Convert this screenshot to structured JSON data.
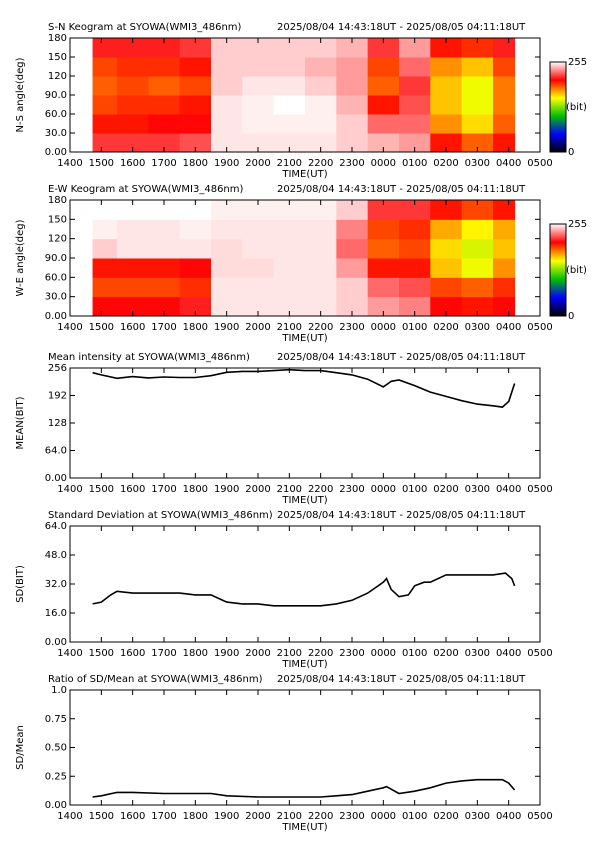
{
  "chart_data": [
    {
      "type": "heatmap",
      "title": "S-N Keogram at SYOWA(WMI3_486nm)",
      "subtitle": "2025/08/04 14:43:18UT - 2025/08/05 04:11:18UT",
      "xlabel": "TIME(UT)",
      "ylabel": "N-S angle(deg)",
      "x_edges": [
        14.72,
        15.5,
        16.5,
        17.5,
        18.5,
        19.5,
        20.5,
        21.5,
        22.5,
        23.5,
        24.5,
        25.5,
        26.5,
        27.5,
        28.19
      ],
      "y_edges": [
        0,
        30,
        60,
        90,
        120,
        150,
        180
      ],
      "z": [
        [
          215,
          215,
          215,
          220,
          250,
          250,
          250,
          250,
          245,
          240,
          235,
          200,
          185,
          200
        ],
        [
          200,
          200,
          205,
          205,
          250,
          252,
          252,
          252,
          245,
          225,
          225,
          175,
          160,
          185
        ],
        [
          190,
          195,
          195,
          200,
          250,
          252,
          255,
          252,
          240,
          200,
          220,
          165,
          150,
          180
        ],
        [
          185,
          190,
          185,
          190,
          245,
          250,
          250,
          245,
          235,
          185,
          215,
          165,
          150,
          180
        ],
        [
          190,
          195,
          195,
          200,
          245,
          245,
          245,
          240,
          235,
          190,
          225,
          175,
          165,
          190
        ],
        [
          210,
          210,
          210,
          215,
          245,
          245,
          245,
          245,
          240,
          215,
          235,
          200,
          195,
          210
        ]
      ],
      "zlim": [
        0,
        255
      ],
      "zticks": [
        0,
        255
      ],
      "colorbar_label": "(bit)",
      "colorscale": [
        "#000000",
        "#0000ff",
        "#00c000",
        "#ffff00",
        "#ff0000",
        "#ffffff"
      ],
      "xlim": [
        14,
        29
      ],
      "xticks": [
        {
          "value": 14,
          "label": "1400"
        },
        {
          "value": 15,
          "label": "1500"
        },
        {
          "value": 16,
          "label": "1600"
        },
        {
          "value": 17,
          "label": "1700"
        },
        {
          "value": 18,
          "label": "1800"
        },
        {
          "value": 19,
          "label": "1900"
        },
        {
          "value": 20,
          "label": "2000"
        },
        {
          "value": 21,
          "label": "2100"
        },
        {
          "value": 22,
          "label": "2200"
        },
        {
          "value": 23,
          "label": "2300"
        },
        {
          "value": 24,
          "label": "0000"
        },
        {
          "value": 25,
          "label": "0100"
        },
        {
          "value": 26,
          "label": "0200"
        },
        {
          "value": 27,
          "label": "0300"
        },
        {
          "value": 28,
          "label": "0400"
        },
        {
          "value": 29,
          "label": "0500"
        }
      ],
      "ylim": [
        0,
        180
      ],
      "yticks": [
        {
          "value": 0,
          "label": "0.00"
        },
        {
          "value": 30,
          "label": "30.0"
        },
        {
          "value": 60,
          "label": "60.0"
        },
        {
          "value": 90,
          "label": "90.0"
        },
        120,
        150,
        180
      ]
    },
    {
      "type": "heatmap",
      "title": "E-W Keogram at SYOWA(WMI3_486nm)",
      "subtitle": "2025/08/04 14:43:18UT - 2025/08/05 04:11:18UT",
      "xlabel": "TIME(UT)",
      "ylabel": "W-E angle(deg)",
      "x_edges": [
        14.72,
        15.5,
        16.5,
        17.5,
        18.5,
        19.5,
        20.5,
        21.5,
        22.5,
        23.5,
        24.5,
        25.5,
        26.5,
        27.5,
        28.19
      ],
      "y_edges": [
        0,
        30,
        60,
        90,
        120,
        150,
        180
      ],
      "z": [
        [
          205,
          205,
          205,
          210,
          250,
          250,
          250,
          250,
          245,
          235,
          230,
          205,
          200,
          205
        ],
        [
          190,
          190,
          190,
          195,
          250,
          250,
          250,
          250,
          245,
          225,
          220,
          190,
          185,
          195
        ],
        [
          200,
          200,
          200,
          205,
          248,
          248,
          250,
          250,
          235,
          200,
          200,
          165,
          150,
          175
        ],
        [
          245,
          250,
          250,
          250,
          248,
          250,
          250,
          250,
          225,
          185,
          190,
          160,
          145,
          165
        ],
        [
          252,
          250,
          250,
          252,
          250,
          250,
          250,
          250,
          230,
          190,
          195,
          170,
          155,
          170
        ],
        [
          255,
          255,
          255,
          255,
          252,
          252,
          252,
          252,
          245,
          215,
          215,
          200,
          190,
          200
        ]
      ],
      "zlim": [
        0,
        255
      ],
      "zticks": [
        0,
        255
      ],
      "colorbar_label": "(bit)",
      "colorscale": [
        "#000000",
        "#0000ff",
        "#00c000",
        "#ffff00",
        "#ff0000",
        "#ffffff"
      ],
      "xlim": [
        14,
        29
      ],
      "xticks": [
        {
          "value": 14,
          "label": "1400"
        },
        {
          "value": 15,
          "label": "1500"
        },
        {
          "value": 16,
          "label": "1600"
        },
        {
          "value": 17,
          "label": "1700"
        },
        {
          "value": 18,
          "label": "1800"
        },
        {
          "value": 19,
          "label": "1900"
        },
        {
          "value": 20,
          "label": "2000"
        },
        {
          "value": 21,
          "label": "2100"
        },
        {
          "value": 22,
          "label": "2200"
        },
        {
          "value": 23,
          "label": "2300"
        },
        {
          "value": 24,
          "label": "0000"
        },
        {
          "value": 25,
          "label": "0100"
        },
        {
          "value": 26,
          "label": "0200"
        },
        {
          "value": 27,
          "label": "0300"
        },
        {
          "value": 28,
          "label": "0400"
        },
        {
          "value": 29,
          "label": "0500"
        }
      ],
      "ylim": [
        0,
        180
      ],
      "yticks": [
        {
          "value": 0,
          "label": "0.00"
        },
        {
          "value": 30,
          "label": "30.0"
        },
        {
          "value": 60,
          "label": "60.0"
        },
        {
          "value": 90,
          "label": "90.0"
        },
        120,
        150,
        180
      ]
    },
    {
      "type": "line",
      "title": "Mean intensity at SYOWA(WMI3_486nm)",
      "subtitle": "2025/08/04 14:43:18UT - 2025/08/05 04:11:18UT",
      "xlabel": "TIME(UT)",
      "ylabel": "MEAN(BIT)",
      "color": "#000000",
      "x": [
        14.72,
        15,
        15.5,
        16,
        16.5,
        17,
        17.5,
        18,
        18.5,
        19,
        19.5,
        20,
        20.5,
        21,
        21.5,
        22,
        22.5,
        23,
        23.5,
        24,
        24.25,
        24.5,
        25,
        25.5,
        26,
        26.5,
        27,
        27.5,
        27.8,
        28,
        28.19
      ],
      "values": [
        245,
        240,
        232,
        236,
        233,
        235,
        234,
        234,
        238,
        246,
        248,
        248,
        250,
        252,
        250,
        250,
        245,
        240,
        230,
        212,
        225,
        228,
        215,
        200,
        190,
        180,
        172,
        168,
        165,
        178,
        220
      ],
      "xlim": [
        14,
        29
      ],
      "xticks": [
        {
          "value": 14,
          "label": "1400"
        },
        {
          "value": 15,
          "label": "1500"
        },
        {
          "value": 16,
          "label": "1600"
        },
        {
          "value": 17,
          "label": "1700"
        },
        {
          "value": 18,
          "label": "1800"
        },
        {
          "value": 19,
          "label": "1900"
        },
        {
          "value": 20,
          "label": "2000"
        },
        {
          "value": 21,
          "label": "2100"
        },
        {
          "value": 22,
          "label": "2200"
        },
        {
          "value": 23,
          "label": "2300"
        },
        {
          "value": 24,
          "label": "0000"
        },
        {
          "value": 25,
          "label": "0100"
        },
        {
          "value": 26,
          "label": "0200"
        },
        {
          "value": 27,
          "label": "0300"
        },
        {
          "value": 28,
          "label": "0400"
        },
        {
          "value": 29,
          "label": "0500"
        }
      ],
      "ylim": [
        0,
        256
      ],
      "yticks": [
        {
          "value": 0,
          "label": "0.00"
        },
        {
          "value": 64,
          "label": "64.0"
        },
        128,
        192,
        256
      ]
    },
    {
      "type": "line",
      "title": "Standard Deviation at SYOWA(WMI3_486nm)",
      "subtitle": "2025/08/04 14:43:18UT - 2025/08/05 04:11:18UT",
      "xlabel": "TIME(UT)",
      "ylabel": "SD(BIT)",
      "color": "#000000",
      "x": [
        14.72,
        15,
        15.3,
        15.5,
        16,
        16.5,
        17,
        17.5,
        18,
        18.5,
        19,
        19.5,
        20,
        20.5,
        21,
        21.5,
        22,
        22.5,
        23,
        23.5,
        24,
        24.1,
        24.25,
        24.5,
        24.8,
        25,
        25.3,
        25.5,
        26,
        26.5,
        27,
        27.5,
        27.9,
        28.1,
        28.19
      ],
      "values": [
        21,
        22,
        26,
        28,
        27,
        27,
        27,
        27,
        26,
        26,
        22,
        21,
        21,
        20,
        20,
        20,
        20,
        21,
        23,
        27,
        33,
        35,
        29,
        25,
        26,
        31,
        33,
        33,
        37,
        37,
        37,
        37,
        38,
        35,
        31
      ],
      "xlim": [
        14,
        29
      ],
      "xticks": [
        {
          "value": 14,
          "label": "1400"
        },
        {
          "value": 15,
          "label": "1500"
        },
        {
          "value": 16,
          "label": "1600"
        },
        {
          "value": 17,
          "label": "1700"
        },
        {
          "value": 18,
          "label": "1800"
        },
        {
          "value": 19,
          "label": "1900"
        },
        {
          "value": 20,
          "label": "2000"
        },
        {
          "value": 21,
          "label": "2100"
        },
        {
          "value": 22,
          "label": "2200"
        },
        {
          "value": 23,
          "label": "2300"
        },
        {
          "value": 24,
          "label": "0000"
        },
        {
          "value": 25,
          "label": "0100"
        },
        {
          "value": 26,
          "label": "0200"
        },
        {
          "value": 27,
          "label": "0300"
        },
        {
          "value": 28,
          "label": "0400"
        },
        {
          "value": 29,
          "label": "0500"
        }
      ],
      "ylim": [
        0,
        64
      ],
      "yticks": [
        {
          "value": 0,
          "label": "0.00"
        },
        {
          "value": 16,
          "label": "16.0"
        },
        {
          "value": 32,
          "label": "32.0"
        },
        {
          "value": 48,
          "label": "48.0"
        },
        {
          "value": 64,
          "label": "64.0"
        }
      ]
    },
    {
      "type": "line",
      "title": "Ratio of SD/Mean at SYOWA(WMI3_486nm)",
      "subtitle": "2025/08/04 14:43:18UT - 2025/08/05 04:11:18UT",
      "xlabel": "TIME(UT)",
      "ylabel": "SD/Mean",
      "color": "#000000",
      "x": [
        14.72,
        15,
        15.5,
        16,
        17,
        18,
        18.5,
        19,
        20,
        21,
        22,
        22.5,
        23,
        23.5,
        24,
        24.1,
        24.5,
        25,
        25.5,
        26,
        26.5,
        27,
        27.5,
        27.8,
        28,
        28.19
      ],
      "values": [
        0.07,
        0.08,
        0.11,
        0.11,
        0.1,
        0.1,
        0.1,
        0.08,
        0.07,
        0.07,
        0.07,
        0.08,
        0.09,
        0.12,
        0.15,
        0.16,
        0.1,
        0.12,
        0.15,
        0.19,
        0.21,
        0.22,
        0.22,
        0.22,
        0.19,
        0.13
      ],
      "xlim": [
        14,
        29
      ],
      "xticks": [
        {
          "value": 14,
          "label": "1400"
        },
        {
          "value": 15,
          "label": "1500"
        },
        {
          "value": 16,
          "label": "1600"
        },
        {
          "value": 17,
          "label": "1700"
        },
        {
          "value": 18,
          "label": "1800"
        },
        {
          "value": 19,
          "label": "1900"
        },
        {
          "value": 20,
          "label": "2000"
        },
        {
          "value": 21,
          "label": "2100"
        },
        {
          "value": 22,
          "label": "2200"
        },
        {
          "value": 23,
          "label": "2300"
        },
        {
          "value": 24,
          "label": "0000"
        },
        {
          "value": 25,
          "label": "0100"
        },
        {
          "value": 26,
          "label": "0200"
        },
        {
          "value": 27,
          "label": "0300"
        },
        {
          "value": 28,
          "label": "0400"
        },
        {
          "value": 29,
          "label": "0500"
        }
      ],
      "ylim": [
        0,
        1.0
      ],
      "yticks": [
        {
          "value": 0,
          "label": "0.00"
        },
        0.25,
        {
          "value": 0.5,
          "label": "0.50"
        },
        0.75,
        {
          "value": 1.0,
          "label": "1.0"
        }
      ]
    }
  ]
}
